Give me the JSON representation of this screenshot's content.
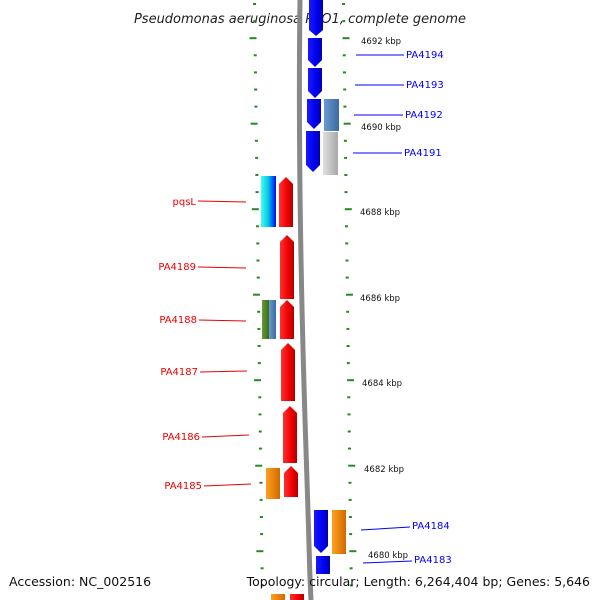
{
  "title": "Pseudomonas aeruginosa PAO1, complete genome",
  "footer": {
    "accession": "Accession: NC_002516",
    "topology": "Topology: circular; Length: 6,264,404 bp; Genes: 5,646"
  },
  "colors": {
    "backbone": "#888888",
    "tick": "#228b22",
    "forward_strand": "#0000ff",
    "reverse_strand": "#ff0000"
  },
  "kbp_labels": [
    "4692 kbp",
    "4690 kbp",
    "4688 kbp",
    "4686 kbp",
    "4684 kbp",
    "4682 kbp",
    "4680 kbp"
  ],
  "genes_right": [
    {
      "label": "PA4194",
      "color": "#0000ff"
    },
    {
      "label": "PA4193",
      "color": "#0000ff"
    },
    {
      "label": "PA4192",
      "color": "#0000ff"
    },
    {
      "label": "PA4191",
      "color": "#0000ff"
    },
    {
      "label": "PA4184",
      "color": "#0000ff"
    },
    {
      "label": "PA4183",
      "color": "#0000ff"
    }
  ],
  "genes_left": [
    {
      "label": "pqsL",
      "color": "#ff0000"
    },
    {
      "label": "PA4189",
      "color": "#ff0000"
    },
    {
      "label": "PA4188",
      "color": "#ff0000"
    },
    {
      "label": "PA4187",
      "color": "#ff0000"
    },
    {
      "label": "PA4186",
      "color": "#ff0000"
    },
    {
      "label": "PA4185",
      "color": "#ff0000"
    }
  ]
}
